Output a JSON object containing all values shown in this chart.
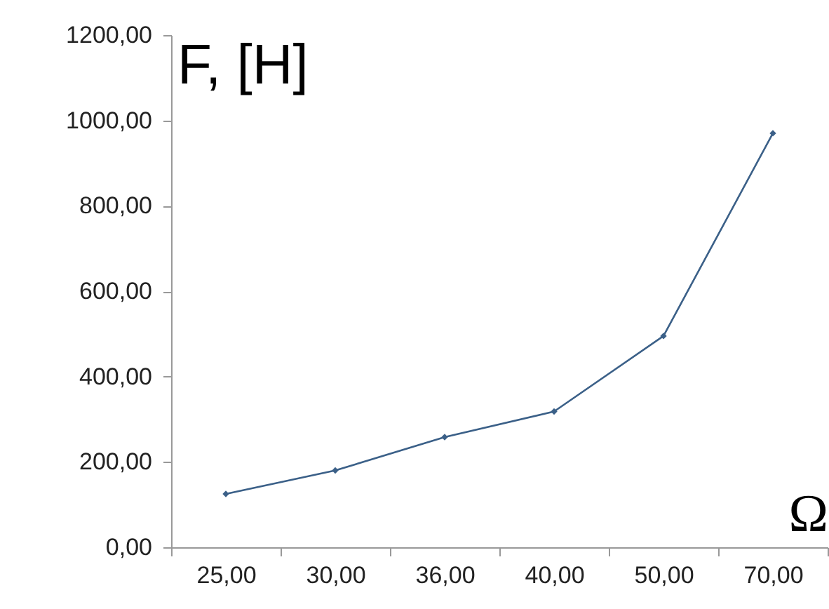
{
  "chart_data": {
    "type": "line",
    "xlabel": "Ω",
    "ylabel": "F, [H]",
    "categories": [
      "25,00",
      "30,00",
      "36,00",
      "40,00",
      "50,00",
      "70,00"
    ],
    "series": [
      {
        "color": "#3b6088",
        "values": [
          125,
          180,
          258,
          318,
          495,
          970
        ]
      }
    ],
    "ylim": [
      0,
      1200
    ],
    "yticks": [
      {
        "value": 0,
        "label": "0,00"
      },
      {
        "value": 200,
        "label": "200,00"
      },
      {
        "value": 400,
        "label": "400,00"
      },
      {
        "value": 600,
        "label": "600,00"
      },
      {
        "value": 800,
        "label": "800,00"
      },
      {
        "value": 1000,
        "label": "1000,00"
      },
      {
        "value": 1200,
        "label": "1200,00"
      }
    ],
    "grid": false,
    "marker": "diamond",
    "line_style": "solid"
  }
}
